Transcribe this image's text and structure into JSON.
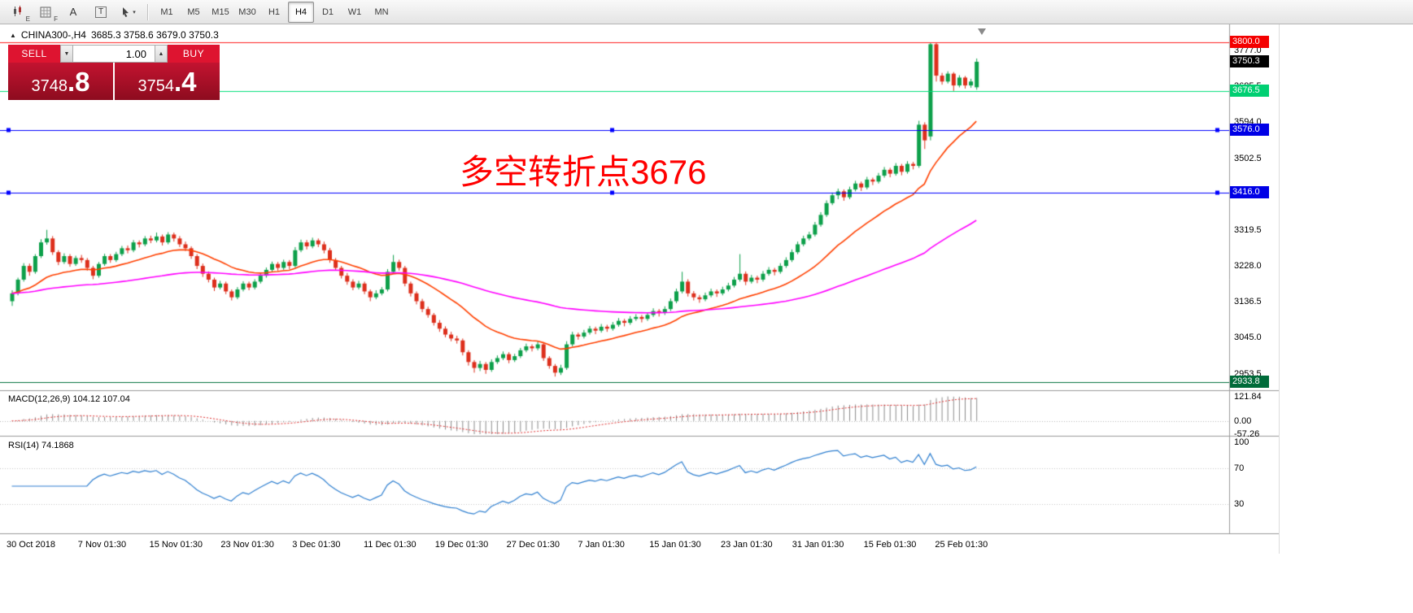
{
  "toolbar": {
    "tools": [
      {
        "id": "chart-templates",
        "sub": "E"
      },
      {
        "id": "grid-tool",
        "sub": "F"
      },
      {
        "id": "text-label-tool",
        "label": "A"
      },
      {
        "id": "text-box-tool",
        "label": "T"
      },
      {
        "id": "cursor-tool",
        "caret": "▾"
      }
    ],
    "timeframes": [
      "M1",
      "M5",
      "M15",
      "M30",
      "H1",
      "H4",
      "D1",
      "W1",
      "MN"
    ],
    "active_timeframe": "H4"
  },
  "chart": {
    "title": {
      "collapse_icon": "▲",
      "symbol": "CHINA300-,H4",
      "ohlc": "3685.3 3758.6 3679.0 3750.3"
    },
    "trade_panel": {
      "sell_label": "SELL",
      "buy_label": "BUY",
      "volume": "1.00",
      "volume_down_icon": "▼",
      "volume_up_icon": "▲",
      "bid_int": "3748",
      "bid_frac": ".8",
      "ask_int": "3754",
      "ask_frac": ".4"
    },
    "annotation": {
      "text": "多空转折点3676",
      "color": "#ff0000"
    },
    "hlines": [
      {
        "price": 3800.0,
        "color": "#ff1f1f",
        "label": "3800.0",
        "label_bg": "#f40000",
        "endpoints": false
      },
      {
        "price": 3676.5,
        "color": "#00df7a",
        "label": "3676.5",
        "label_bg": "#00cf72",
        "endpoints": false
      },
      {
        "price": 3576.0,
        "color": "#0000ff",
        "label": "3576.0",
        "label_bg": "#0000e6",
        "endpoints": true
      },
      {
        "price": 3416.0,
        "color": "#0000ff",
        "label": "3416.0",
        "label_bg": "#0000e6",
        "endpoints": true
      },
      {
        "price": 2933.8,
        "color": "#00703c",
        "label": "2933.8",
        "label_bg": "#006b3a",
        "endpoints": false
      }
    ],
    "current_price": {
      "price": 3750.3,
      "value": "3750.3",
      "bg": "#000000"
    },
    "price_ticks": [
      3777.0,
      3685.5,
      3594.0,
      3502.5,
      3319.5,
      3228.0,
      3136.5,
      3045.0,
      2953.5
    ]
  },
  "indicators": {
    "macd": {
      "label_line": "MACD(12,26,9) 104.12 107.04",
      "fast": 12,
      "slow": 26,
      "signal_period": 9,
      "range": [
        -57.26,
        121.84
      ],
      "histogram_color": "#8c8c8c",
      "signal_color": "#e03030",
      "axis": [
        {
          "value": 121.84,
          "label": "121.84"
        },
        {
          "value": 0,
          "label": "0.00"
        },
        {
          "value": -57.26,
          "label": "-57.26"
        }
      ]
    },
    "rsi": {
      "label_line": "RSI(14) 74.1868",
      "period": 14,
      "value": 74.1868,
      "color": "#2e7fd0",
      "levels": [
        70,
        30
      ],
      "axis": [
        {
          "value": 100,
          "label": "100"
        },
        {
          "value": 70,
          "label": "70"
        },
        {
          "value": 30,
          "label": "30"
        }
      ]
    }
  },
  "time_axis": {
    "labels": [
      "30 Oct 2018",
      "7 Nov 01:30",
      "15 Nov 01:30",
      "23 Nov 01:30",
      "3 Dec 01:30",
      "11 Dec 01:30",
      "19 Dec 01:30",
      "27 Dec 01:30",
      "7 Jan 01:30",
      "15 Jan 01:30",
      "23 Jan 01:30",
      "31 Jan 01:30",
      "15 Feb 01:30",
      "25 Feb 01:30"
    ]
  },
  "chart_data": {
    "type": "candlestick",
    "symbol": "CHINA300-",
    "timeframe": "H4",
    "up_color": "#0da04a",
    "down_color": "#dd2f1c",
    "ma_fast": {
      "period": 21,
      "color": "#ff4000"
    },
    "ma_slow": {
      "period": 89,
      "color": "#ff00ff"
    },
    "visible_price_range": [
      2917,
      3836
    ],
    "candles": [
      [
        3140,
        3168,
        3128,
        3160
      ],
      [
        3160,
        3200,
        3155,
        3195
      ],
      [
        3195,
        3237,
        3190,
        3230
      ],
      [
        3230,
        3236,
        3205,
        3215
      ],
      [
        3215,
        3260,
        3210,
        3255
      ],
      [
        3255,
        3298,
        3250,
        3290
      ],
      [
        3290,
        3322,
        3284,
        3300
      ],
      [
        3300,
        3306,
        3258,
        3265
      ],
      [
        3265,
        3270,
        3232,
        3240
      ],
      [
        3240,
        3262,
        3235,
        3255
      ],
      [
        3255,
        3260,
        3228,
        3235
      ],
      [
        3235,
        3256,
        3230,
        3250
      ],
      [
        3250,
        3258,
        3238,
        3245
      ],
      [
        3245,
        3250,
        3218,
        3225
      ],
      [
        3225,
        3230,
        3196,
        3205
      ],
      [
        3205,
        3240,
        3200,
        3235
      ],
      [
        3235,
        3261,
        3230,
        3255
      ],
      [
        3255,
        3260,
        3238,
        3245
      ],
      [
        3245,
        3266,
        3240,
        3260
      ],
      [
        3260,
        3281,
        3255,
        3275
      ],
      [
        3275,
        3282,
        3262,
        3270
      ],
      [
        3270,
        3296,
        3265,
        3290
      ],
      [
        3290,
        3295,
        3277,
        3285
      ],
      [
        3285,
        3306,
        3280,
        3300
      ],
      [
        3300,
        3307,
        3288,
        3295
      ],
      [
        3295,
        3315,
        3290,
        3305
      ],
      [
        3305,
        3310,
        3282,
        3290
      ],
      [
        3290,
        3316,
        3285,
        3310
      ],
      [
        3310,
        3315,
        3292,
        3300
      ],
      [
        3300,
        3306,
        3278,
        3285
      ],
      [
        3285,
        3292,
        3268,
        3275
      ],
      [
        3275,
        3280,
        3248,
        3255
      ],
      [
        3255,
        3260,
        3222,
        3230
      ],
      [
        3230,
        3236,
        3202,
        3210
      ],
      [
        3210,
        3216,
        3188,
        3195
      ],
      [
        3195,
        3200,
        3166,
        3175
      ],
      [
        3175,
        3192,
        3170,
        3185
      ],
      [
        3185,
        3190,
        3158,
        3165
      ],
      [
        3165,
        3170,
        3142,
        3150
      ],
      [
        3150,
        3176,
        3145,
        3170
      ],
      [
        3170,
        3191,
        3165,
        3185
      ],
      [
        3185,
        3190,
        3168,
        3175
      ],
      [
        3175,
        3196,
        3170,
        3190
      ],
      [
        3190,
        3211,
        3185,
        3205
      ],
      [
        3205,
        3226,
        3200,
        3220
      ],
      [
        3220,
        3241,
        3215,
        3235
      ],
      [
        3235,
        3240,
        3218,
        3225
      ],
      [
        3225,
        3246,
        3220,
        3240
      ],
      [
        3240,
        3245,
        3222,
        3230
      ],
      [
        3230,
        3278,
        3226,
        3270
      ],
      [
        3270,
        3297,
        3265,
        3290
      ],
      [
        3290,
        3296,
        3272,
        3280
      ],
      [
        3280,
        3302,
        3275,
        3295
      ],
      [
        3295,
        3300,
        3278,
        3285
      ],
      [
        3285,
        3292,
        3262,
        3270
      ],
      [
        3270,
        3276,
        3238,
        3245
      ],
      [
        3245,
        3250,
        3218,
        3225
      ],
      [
        3225,
        3230,
        3198,
        3205
      ],
      [
        3205,
        3212,
        3182,
        3190
      ],
      [
        3190,
        3196,
        3168,
        3175
      ],
      [
        3175,
        3192,
        3170,
        3185
      ],
      [
        3185,
        3190,
        3158,
        3165
      ],
      [
        3165,
        3170,
        3140,
        3150
      ],
      [
        3150,
        3168,
        3145,
        3160
      ],
      [
        3160,
        3176,
        3155,
        3170
      ],
      [
        3170,
        3222,
        3165,
        3215
      ],
      [
        3215,
        3258,
        3210,
        3240
      ],
      [
        3240,
        3246,
        3218,
        3225
      ],
      [
        3225,
        3230,
        3178,
        3185
      ],
      [
        3185,
        3190,
        3152,
        3160
      ],
      [
        3160,
        3165,
        3132,
        3140
      ],
      [
        3140,
        3146,
        3112,
        3120
      ],
      [
        3120,
        3126,
        3098,
        3105
      ],
      [
        3105,
        3110,
        3078,
        3085
      ],
      [
        3085,
        3092,
        3062,
        3070
      ],
      [
        3070,
        3076,
        3048,
        3055
      ],
      [
        3055,
        3062,
        3038,
        3045
      ],
      [
        3045,
        3052,
        3032,
        3040
      ],
      [
        3040,
        3045,
        3002,
        3010
      ],
      [
        3010,
        3015,
        2976,
        2985
      ],
      [
        2985,
        2990,
        2958,
        2970
      ],
      [
        2970,
        2988,
        2962,
        2980
      ],
      [
        2980,
        2985,
        2955,
        2965
      ],
      [
        2965,
        2992,
        2960,
        2985
      ],
      [
        2985,
        3002,
        2980,
        2995
      ],
      [
        2995,
        3012,
        2990,
        3005
      ],
      [
        3005,
        3010,
        2982,
        2990
      ],
      [
        2990,
        3006,
        2985,
        3000
      ],
      [
        3000,
        3021,
        2995,
        3015
      ],
      [
        3015,
        3032,
        3010,
        3025
      ],
      [
        3025,
        3030,
        3012,
        3020
      ],
      [
        3020,
        3037,
        3015,
        3030
      ],
      [
        3030,
        3035,
        2988,
        2995
      ],
      [
        2995,
        3000,
        2968,
        2975
      ],
      [
        2975,
        2980,
        2948,
        2958
      ],
      [
        2958,
        2978,
        2952,
        2970
      ],
      [
        2970,
        3038,
        2965,
        3030
      ],
      [
        3030,
        3062,
        3025,
        3055
      ],
      [
        3055,
        3060,
        3042,
        3050
      ],
      [
        3050,
        3067,
        3045,
        3060
      ],
      [
        3060,
        3077,
        3055,
        3070
      ],
      [
        3070,
        3075,
        3056,
        3065
      ],
      [
        3065,
        3082,
        3060,
        3075
      ],
      [
        3075,
        3080,
        3062,
        3070
      ],
      [
        3070,
        3087,
        3065,
        3080
      ],
      [
        3080,
        3097,
        3075,
        3090
      ],
      [
        3090,
        3095,
        3076,
        3085
      ],
      [
        3085,
        3102,
        3080,
        3095
      ],
      [
        3095,
        3107,
        3090,
        3100
      ],
      [
        3100,
        3105,
        3086,
        3095
      ],
      [
        3095,
        3112,
        3090,
        3105
      ],
      [
        3105,
        3122,
        3100,
        3115
      ],
      [
        3115,
        3120,
        3101,
        3110
      ],
      [
        3110,
        3127,
        3105,
        3120
      ],
      [
        3120,
        3147,
        3115,
        3140
      ],
      [
        3140,
        3172,
        3135,
        3165
      ],
      [
        3165,
        3215,
        3160,
        3190
      ],
      [
        3190,
        3196,
        3152,
        3160
      ],
      [
        3160,
        3166,
        3142,
        3150
      ],
      [
        3150,
        3156,
        3136,
        3145
      ],
      [
        3145,
        3162,
        3140,
        3155
      ],
      [
        3155,
        3172,
        3150,
        3165
      ],
      [
        3165,
        3170,
        3151,
        3160
      ],
      [
        3160,
        3177,
        3155,
        3170
      ],
      [
        3170,
        3187,
        3165,
        3180
      ],
      [
        3180,
        3202,
        3175,
        3195
      ],
      [
        3195,
        3260,
        3190,
        3210
      ],
      [
        3210,
        3216,
        3181,
        3190
      ],
      [
        3190,
        3207,
        3185,
        3200
      ],
      [
        3200,
        3205,
        3186,
        3195
      ],
      [
        3195,
        3217,
        3190,
        3210
      ],
      [
        3210,
        3227,
        3205,
        3220
      ],
      [
        3220,
        3225,
        3206,
        3215
      ],
      [
        3215,
        3237,
        3210,
        3230
      ],
      [
        3230,
        3252,
        3225,
        3245
      ],
      [
        3245,
        3272,
        3240,
        3265
      ],
      [
        3265,
        3292,
        3260,
        3285
      ],
      [
        3285,
        3307,
        3280,
        3300
      ],
      [
        3300,
        3317,
        3295,
        3310
      ],
      [
        3310,
        3342,
        3305,
        3335
      ],
      [
        3335,
        3367,
        3330,
        3360
      ],
      [
        3360,
        3397,
        3355,
        3390
      ],
      [
        3390,
        3417,
        3385,
        3410
      ],
      [
        3410,
        3427,
        3400,
        3420
      ],
      [
        3420,
        3425,
        3396,
        3405
      ],
      [
        3405,
        3432,
        3400,
        3425
      ],
      [
        3425,
        3447,
        3420,
        3440
      ],
      [
        3440,
        3445,
        3421,
        3430
      ],
      [
        3430,
        3457,
        3425,
        3450
      ],
      [
        3450,
        3455,
        3436,
        3445
      ],
      [
        3445,
        3467,
        3440,
        3460
      ],
      [
        3460,
        3482,
        3455,
        3475
      ],
      [
        3475,
        3480,
        3456,
        3465
      ],
      [
        3465,
        3492,
        3460,
        3485
      ],
      [
        3485,
        3490,
        3461,
        3470
      ],
      [
        3470,
        3497,
        3465,
        3490
      ],
      [
        3490,
        3495,
        3476,
        3485
      ],
      [
        3485,
        3600,
        3480,
        3590
      ],
      [
        3590,
        3596,
        3528,
        3550
      ],
      [
        3560,
        3800,
        3550,
        3795
      ],
      [
        3795,
        3798,
        3700,
        3715
      ],
      [
        3715,
        3722,
        3692,
        3700
      ],
      [
        3700,
        3726,
        3695,
        3720
      ],
      [
        3720,
        3724,
        3676,
        3690
      ],
      [
        3690,
        3716,
        3685,
        3710
      ],
      [
        3710,
        3714,
        3682,
        3690
      ],
      [
        3690,
        3707,
        3684,
        3700
      ],
      [
        3685.3,
        3758.6,
        3679,
        3750.3
      ]
    ]
  }
}
